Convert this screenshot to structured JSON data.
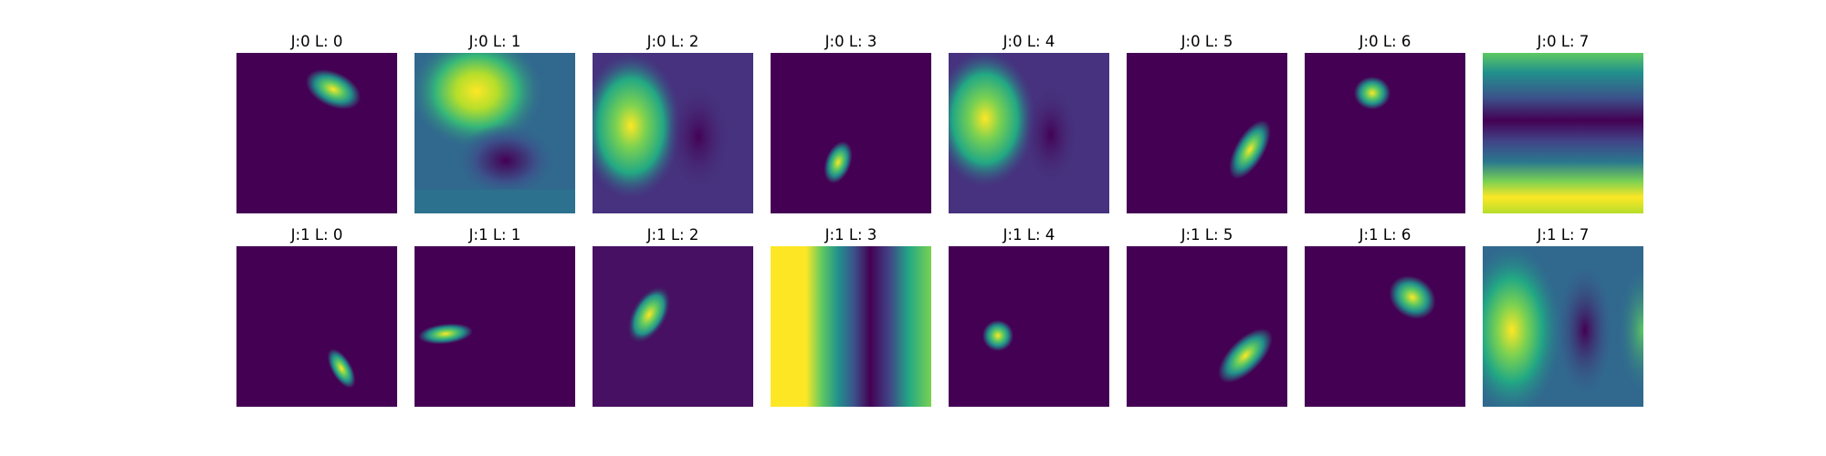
{
  "figure": {
    "background_color": "#440154",
    "colormap": "viridis",
    "rows": [
      {
        "cells": [
          {
            "title": "J:0 L: 0",
            "pattern": "gaussian-blob"
          },
          {
            "title": "J:0 L: 1",
            "pattern": "broad-wave"
          },
          {
            "title": "J:0 L: 2",
            "pattern": "broad-wave"
          },
          {
            "title": "J:0 L: 3",
            "pattern": "gaussian-blob"
          },
          {
            "title": "J:0 L: 4",
            "pattern": "broad-wave"
          },
          {
            "title": "J:0 L: 5",
            "pattern": "gaussian-blob"
          },
          {
            "title": "J:0 L: 6",
            "pattern": "gaussian-blob"
          },
          {
            "title": "J:0 L: 7",
            "pattern": "horizontal-stripes"
          }
        ]
      },
      {
        "cells": [
          {
            "title": "J:1 L: 0",
            "pattern": "gaussian-blob"
          },
          {
            "title": "J:1 L: 1",
            "pattern": "gaussian-blob"
          },
          {
            "title": "J:1 L: 2",
            "pattern": "gaussian-blob"
          },
          {
            "title": "J:1 L: 3",
            "pattern": "vertical-stripes"
          },
          {
            "title": "J:1 L: 4",
            "pattern": "gaussian-blob"
          },
          {
            "title": "J:1 L: 5",
            "pattern": "gaussian-blob"
          },
          {
            "title": "J:1 L: 6",
            "pattern": "gaussian-blob"
          },
          {
            "title": "J:1 L: 7",
            "pattern": "broad-wave"
          }
        ]
      }
    ]
  }
}
